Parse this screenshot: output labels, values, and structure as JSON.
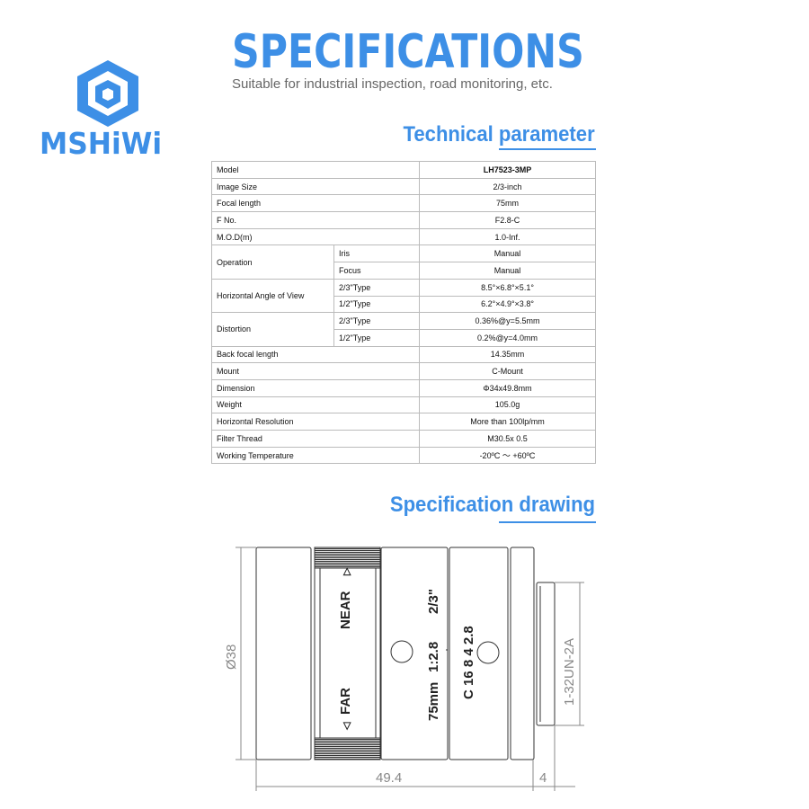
{
  "header": {
    "title": "SPECIFICATIONS",
    "subtitle": "Suitable for industrial inspection, road monitoring, etc.",
    "brand": "MSHiWi",
    "brand_color": "#3d8fe6"
  },
  "sections": {
    "technical": "Technical parameter",
    "drawing": "Specification drawing"
  },
  "table": {
    "model": {
      "label": "Model",
      "value": "LH7523-3MP"
    },
    "image_size": {
      "label": "Image Size",
      "value": "2/3-inch"
    },
    "focal_length": {
      "label": "Focal length",
      "value": "75mm"
    },
    "f_no": {
      "label": "F No.",
      "value": "F2.8-C"
    },
    "mod": {
      "label": "M.O.D(m)",
      "value": "1.0-Inf."
    },
    "operation": {
      "label": "Operation",
      "iris": "Iris",
      "iris_value": "Manual",
      "focus": "Focus",
      "focus_value": "Manual"
    },
    "angle": {
      "label": "Horizontal Angle of View",
      "t1": "2/3\"Type",
      "v1": "8.5°×6.8°×5.1°",
      "t2": "1/2\"Type",
      "v2": "6.2°×4.9°×3.8°"
    },
    "distortion": {
      "label": "Distortion",
      "t1": "2/3\"Type",
      "v1": "0.36%@y=5.5mm",
      "t2": "1/2\"Type",
      "v2": "0.2%@y=4.0mm"
    },
    "back_focal": {
      "label": "Back focal length",
      "value": "14.35mm"
    },
    "mount": {
      "label": "Mount",
      "value": "C-Mount"
    },
    "dimension": {
      "label": "Dimension",
      "value": "Φ34x49.8mm"
    },
    "weight": {
      "label": "Weight",
      "value": "105.0g"
    },
    "resolution": {
      "label": "Horizontal Resolution",
      "value": "More than 100lp/mm"
    },
    "filter": {
      "label": "Filter Thread",
      "value": "M30.5x 0.5"
    },
    "temp": {
      "label": "Working Temperature",
      "value": "-20ºC ～ +60ºC"
    }
  },
  "drawing": {
    "diameter": "Ø38",
    "length": "49.4",
    "mount_length": "4",
    "thread": "1-32UN-2A",
    "near": "NEAR",
    "far": "FAR",
    "lens_focal": "75mm",
    "lens_aperture": "1:2.8",
    "lens_format": "2/3\"",
    "iris_scale": "C 16 8 4 2.8"
  }
}
